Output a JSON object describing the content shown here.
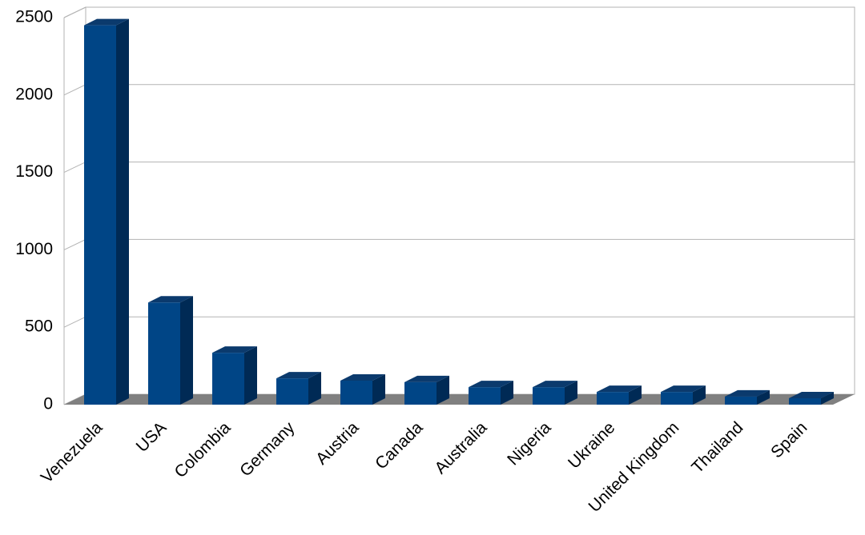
{
  "chart_data": {
    "type": "bar3d",
    "categories": [
      "Venezuela",
      "USA",
      "Colombia",
      "Germany",
      "Austria",
      "Canada",
      "Australia",
      "Nigeria",
      "Ukraine",
      "United Kingdom",
      "Thailand",
      "Spain"
    ],
    "values": [
      2450,
      660,
      335,
      170,
      155,
      145,
      113,
      113,
      82,
      82,
      52,
      41
    ],
    "color": "#004586",
    "ylim": [
      0,
      2500
    ],
    "yticks": [
      0,
      500,
      1000,
      1500,
      2000,
      2500
    ],
    "grid": true
  }
}
